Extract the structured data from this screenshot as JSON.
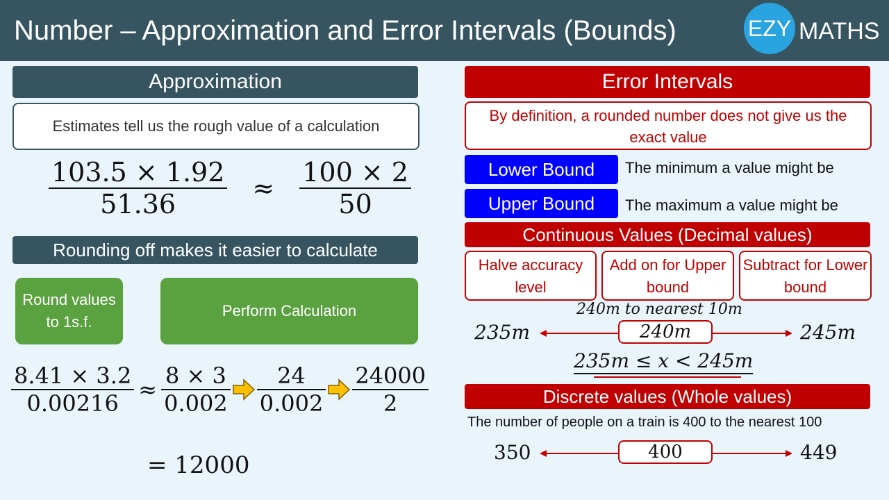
{
  "header": {
    "title": "Number – Approximation and Error Intervals (Bounds)",
    "logo_ezy": "EZY",
    "logo_maths": "MATHS"
  },
  "left": {
    "approx_title": "Approximation",
    "estimates_text": "Estimates tell us the rough value of a calculation",
    "eq1": {
      "num": "103.5 × 1.92",
      "den": "51.36",
      "approx": "≈",
      "num2": "100 × 2",
      "den2": "50"
    },
    "rounding_title": "Rounding off makes it easier to calculate",
    "step1": "Round values to 1s.f.",
    "step2": "Perform Calculation",
    "eq2": {
      "f1num": "8.41 × 3.2",
      "f1den": "0.00216",
      "approx": "≈",
      "f2num": "8 × 3",
      "f2den": "0.002",
      "f3num": "24",
      "f3den": "0.002",
      "f4num": "24000",
      "f4den": "2"
    },
    "result": "= 12000"
  },
  "right": {
    "error_title": "Error Intervals",
    "definition": "By definition, a rounded number does not give us the exact value",
    "lower_label": "Lower Bound",
    "lower_desc": "The minimum a value might be",
    "upper_label": "Upper Bound",
    "upper_desc": "The maximum a value might be",
    "continuous_title": "Continuous Values (Decimal values)",
    "steps": [
      "Halve accuracy level",
      "Add on for Upper bound",
      "Subtract for Lower bound"
    ],
    "cont_example": {
      "caption": "240m to nearest 10m",
      "low": "235m",
      "mid": "240m",
      "high": "245m",
      "inequality": "235m ≤ x < 245m"
    },
    "discrete_title": "Discrete values (Whole values)",
    "disc_example": {
      "caption": "The number of people on a train is 400 to the nearest 100",
      "low": "350",
      "mid": "400",
      "high": "449"
    }
  },
  "colors": {
    "header": "#375561",
    "red": "#c00000",
    "blue": "#0000ff",
    "green": "#5aa23f",
    "logo": "#29a4e0",
    "arrow": "#ffc000"
  }
}
